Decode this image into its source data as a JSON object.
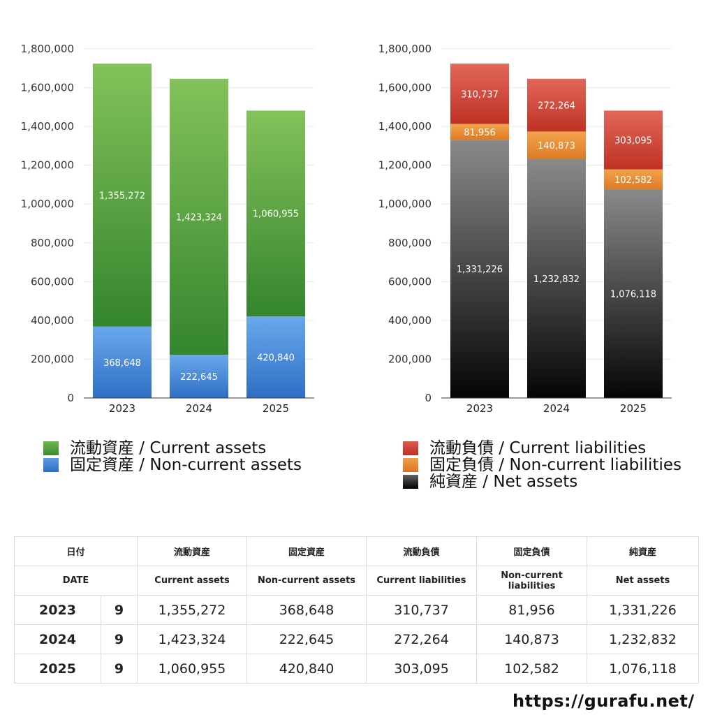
{
  "chart_data": [
    {
      "type": "bar",
      "stacked": true,
      "categories": [
        "2023",
        "2024",
        "2025"
      ],
      "ylim": [
        0,
        1800000
      ],
      "yticks": [
        "0",
        "200,000",
        "400,000",
        "600,000",
        "800,000",
        "1,000,000",
        "1,200,000",
        "1,400,000",
        "1,600,000",
        "1,800,000"
      ],
      "grid": true,
      "legend_position": "bottom",
      "series": [
        {
          "name": "固定資産 / Non-current assets",
          "values": [
            368648,
            222645,
            420840
          ],
          "labels": [
            "368,648",
            "222,645",
            "420,840"
          ],
          "color_top": "#6aa8ec",
          "color_bottom": "#2e6fc4"
        },
        {
          "name": "流動資産 / Current assets",
          "values": [
            1355272,
            1423324,
            1060955
          ],
          "labels": [
            "1,355,272",
            "1,423,324",
            "1,060,955"
          ],
          "color_top": "#84c25a",
          "color_bottom": "#34852e"
        }
      ]
    },
    {
      "type": "bar",
      "stacked": true,
      "categories": [
        "2023",
        "2024",
        "2025"
      ],
      "ylim": [
        0,
        1800000
      ],
      "yticks": [
        "0",
        "200,000",
        "400,000",
        "600,000",
        "800,000",
        "1,000,000",
        "1,200,000",
        "1,400,000",
        "1,600,000",
        "1,800,000"
      ],
      "grid": true,
      "legend_position": "bottom",
      "series": [
        {
          "name": "純資産 / Net assets",
          "values": [
            1331226,
            1232832,
            1076118
          ],
          "labels": [
            "1,331,226",
            "1,232,832",
            "1,076,118"
          ],
          "color_top": "#8a8a8a",
          "color_bottom": "#050505"
        },
        {
          "name": "固定負債 / Non-current liabilities",
          "values": [
            81956,
            140873,
            102582
          ],
          "labels": [
            "81,956",
            "140,873",
            "102,582"
          ],
          "color_top": "#f2a44c",
          "color_bottom": "#de7a24"
        },
        {
          "name": "流動負債 / Current liabilities",
          "values": [
            310737,
            272264,
            303095
          ],
          "labels": [
            "310,737",
            "272,264",
            "303,095"
          ],
          "color_top": "#e2675a",
          "color_bottom": "#bf3224"
        }
      ]
    }
  ],
  "legends": {
    "left": [
      {
        "label": "流動資産 / Current assets",
        "color": "#5aa83f"
      },
      {
        "label": "固定資産 / Non-current assets",
        "color": "#3f80d8"
      }
    ],
    "right": [
      {
        "label": "流動負債 / Current liabilities",
        "color": "#d24a3c"
      },
      {
        "label": "固定負債 / Non-current liabilities",
        "color": "#e8872e"
      },
      {
        "label": "純資産 / Net assets",
        "color": "#1a1a1a"
      }
    ]
  },
  "table": {
    "header_jp": {
      "date": "日付",
      "c1": "流動資産",
      "c2": "固定資産",
      "c3": "流動負債",
      "c4": "固定負債",
      "c5": "純資産"
    },
    "header_en": {
      "date": "DATE",
      "c1": "Current assets",
      "c2": "Non-current assets",
      "c3": "Current liabilities",
      "c4": "Non-current liabilities",
      "c5": "Net assets"
    },
    "rows": [
      {
        "year": "2023",
        "month": "9",
        "c1": "1,355,272",
        "c2": "368,648",
        "c3": "310,737",
        "c4": "81,956",
        "c5": "1,331,226"
      },
      {
        "year": "2024",
        "month": "9",
        "c1": "1,423,324",
        "c2": "222,645",
        "c3": "272,264",
        "c4": "140,873",
        "c5": "1,232,832"
      },
      {
        "year": "2025",
        "month": "9",
        "c1": "1,060,955",
        "c2": "420,840",
        "c3": "303,095",
        "c4": "102,582",
        "c5": "1,076,118"
      }
    ]
  },
  "site_url": "https://gurafu.net/"
}
